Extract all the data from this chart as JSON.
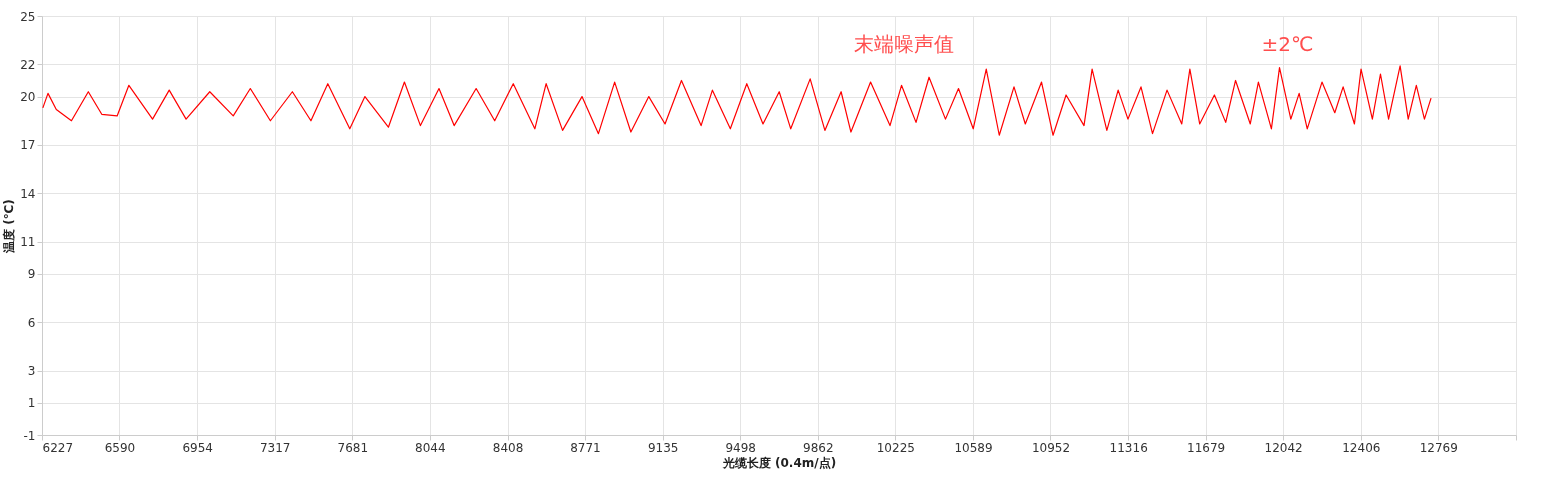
{
  "chart_data": {
    "type": "line",
    "xlabel": "光缆长度 (0.4m/点)",
    "ylabel": "温度 (℃)",
    "annotations": [
      "末端噪声值",
      "±2℃"
    ],
    "x": [
      6231,
      6255,
      6294,
      6365,
      6444,
      6507,
      6579,
      6634,
      6745,
      6823,
      6902,
      7013,
      7123,
      7203,
      7297,
      7400,
      7487,
      7566,
      7669,
      7740,
      7850,
      7925,
      8000,
      8087,
      8158,
      8261,
      8348,
      8435,
      8536,
      8589,
      8666,
      8757,
      8834,
      8910,
      8986,
      9070,
      9146,
      9223,
      9315,
      9368,
      9452,
      9529,
      9605,
      9681,
      9735,
      9826,
      9895,
      9971,
      10017,
      10109,
      10200,
      10254,
      10322,
      10383,
      10460,
      10521,
      10590,
      10651,
      10712,
      10781,
      10834,
      10910,
      10964,
      11025,
      11109,
      11147,
      11216,
      11269,
      11315,
      11376,
      11430,
      11498,
      11567,
      11605,
      11651,
      11720,
      11773,
      11819,
      11888,
      11926,
      11987,
      12025,
      12078,
      12117,
      12155,
      12224,
      12284,
      12323,
      12376,
      12407,
      12460,
      12498,
      12536,
      12590,
      12628,
      12666,
      12704,
      12735
    ],
    "series": [
      {
        "color": "#ff0000",
        "values": [
          19.3,
          20.2,
          19.2,
          18.5,
          20.3,
          18.9,
          18.8,
          20.7,
          18.6,
          20.4,
          18.6,
          20.3,
          18.8,
          20.5,
          18.5,
          20.3,
          18.5,
          20.8,
          18.0,
          20.0,
          18.1,
          20.9,
          18.2,
          20.5,
          18.2,
          20.5,
          18.5,
          20.8,
          18.0,
          20.8,
          17.9,
          20.0,
          17.7,
          20.9,
          17.8,
          20.0,
          18.3,
          21.0,
          18.2,
          20.4,
          18.0,
          20.8,
          18.3,
          20.3,
          18.0,
          21.1,
          17.9,
          20.3,
          17.8,
          20.9,
          18.2,
          20.7,
          18.4,
          21.2,
          18.6,
          20.5,
          18.0,
          21.7,
          17.6,
          20.6,
          18.3,
          20.9,
          17.6,
          20.1,
          18.2,
          21.7,
          17.9,
          20.4,
          18.6,
          20.6,
          17.7,
          20.4,
          18.3,
          21.7,
          18.3,
          20.1,
          18.4,
          21.0,
          18.3,
          20.9,
          18.0,
          21.8,
          18.6,
          20.2,
          18.0,
          20.9,
          19.0,
          20.6,
          18.3,
          21.7,
          18.6,
          21.4,
          18.6,
          21.9,
          18.6,
          20.7,
          18.6,
          19.9
        ]
      }
    ],
    "xlim": [
      6227,
      13133
    ],
    "xticks": [
      6227,
      6590,
      6954,
      7317,
      7681,
      8044,
      8408,
      8771,
      9135,
      9498,
      9862,
      10225,
      10589,
      10952,
      11316,
      11679,
      12042,
      12406,
      12769,
      {
        "value": 13133,
        "label": null
      }
    ],
    "ylim": [
      -1,
      25
    ],
    "yticks": [
      -1,
      1,
      3,
      6,
      9,
      11,
      14,
      17,
      20,
      22,
      25
    ],
    "grid": true,
    "marker": "none",
    "line_style": "solid"
  }
}
